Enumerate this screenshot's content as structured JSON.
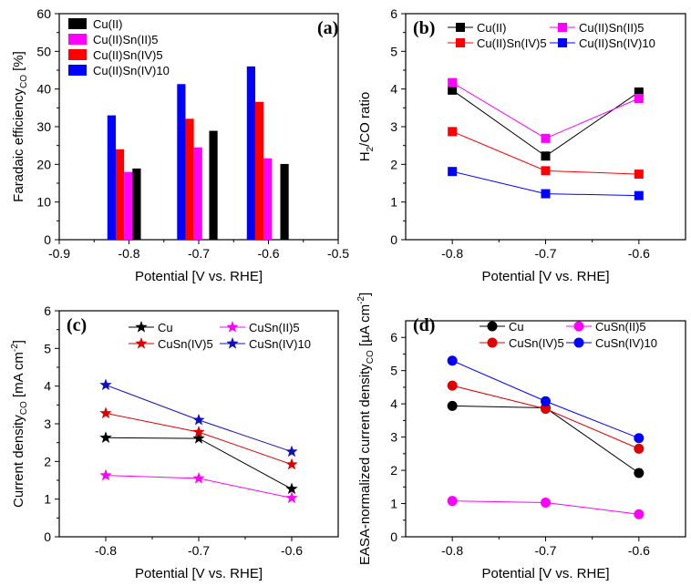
{
  "chart_data": [
    {
      "id": "a",
      "type": "bar",
      "panel_label": "(a)",
      "title": "",
      "xlabel": "Potential [V vs. RHE]",
      "ylabel": "Faradaic efficiency",
      "ylabel_sub": "CO",
      "ylabel_unit": " [%]",
      "xlim": [
        -0.9,
        -0.5
      ],
      "ylim": [
        0,
        60
      ],
      "xticks": [
        -0.9,
        -0.8,
        -0.7,
        -0.6,
        -0.5
      ],
      "xtick_labels": [
        "-0.9",
        "-0.8",
        "-0.7",
        "-0.6",
        "-0.5"
      ],
      "yticks": [
        0,
        10,
        20,
        30,
        40,
        50,
        60
      ],
      "ytick_labels": [
        "0",
        "10",
        "20",
        "30",
        "40",
        "50",
        "60"
      ],
      "bar_width": 0.012,
      "series": [
        {
          "name": "Cu(II)Sn(IV)10",
          "color": "#0000ff",
          "x": [
            -0.825,
            -0.725,
            -0.625
          ],
          "values": [
            33,
            41.3,
            46
          ]
        },
        {
          "name": "Cu(II)Sn(IV)5",
          "color": "#ff0000",
          "x": [
            -0.813,
            -0.713,
            -0.613
          ],
          "values": [
            24,
            32.1,
            36.6
          ]
        },
        {
          "name": "Cu(II)Sn(II)5",
          "color": "#ff00ff",
          "x": [
            -0.801,
            -0.701,
            -0.601
          ],
          "values": [
            18,
            24.5,
            21.6
          ]
        },
        {
          "name": "Cu(II)",
          "color": "#000000",
          "x": [
            -0.789,
            -0.679,
            -0.577
          ],
          "values": [
            18.9,
            28.9,
            20.1
          ]
        }
      ],
      "legend": [
        "Cu(II)",
        "Cu(II)Sn(II)5",
        "Cu(II)Sn(IV)5",
        "Cu(II)Sn(IV)10"
      ]
    },
    {
      "id": "b",
      "type": "line",
      "panel_label": "(b)",
      "xlabel": "Potential [V vs. RHE]",
      "ylabel": "H",
      "ylabel_sub": "2",
      "ylabel_unit": "/CO ratio",
      "xlim": [
        -0.85,
        -0.55
      ],
      "ylim": [
        0,
        6
      ],
      "xticks": [
        -0.8,
        -0.7,
        -0.6
      ],
      "xtick_labels": [
        "-0.8",
        "-0.7",
        "-0.6"
      ],
      "yticks": [
        0,
        1,
        2,
        3,
        4,
        5,
        6
      ],
      "ytick_labels": [
        "0",
        "1",
        "2",
        "3",
        "4",
        "5",
        "6"
      ],
      "marker": "square",
      "x": [
        -0.8,
        -0.7,
        -0.6
      ],
      "series": [
        {
          "name": "Cu(II)",
          "color": "#000000",
          "values": [
            3.97,
            2.22,
            3.92
          ]
        },
        {
          "name": "Cu(II)Sn(II)5",
          "color": "#ff00ff",
          "values": [
            4.17,
            2.69,
            3.75
          ]
        },
        {
          "name": "Cu(II)Sn(IV)5",
          "color": "#ff0000",
          "values": [
            2.87,
            1.83,
            1.74
          ]
        },
        {
          "name": "Cu(II)Sn(IV)10",
          "color": "#0000ff",
          "values": [
            1.81,
            1.22,
            1.17
          ]
        }
      ]
    },
    {
      "id": "c",
      "type": "line",
      "panel_label": "(c)",
      "xlabel": "Potential [V vs. RHE]",
      "ylabel": "Current density",
      "ylabel_sub": "CO",
      "ylabel_unit": " [mA cm",
      "ylabel_sup": "-2",
      "ylabel_end": "]",
      "xlim": [
        -0.85,
        -0.55
      ],
      "ylim": [
        0,
        6
      ],
      "xticks": [
        -0.8,
        -0.7,
        -0.6
      ],
      "xtick_labels": [
        "-0.8",
        "-0.7",
        "-0.6"
      ],
      "yticks": [
        0,
        1,
        2,
        3,
        4,
        5,
        6
      ],
      "ytick_labels": [
        "0",
        "1",
        "2",
        "3",
        "4",
        "5",
        "6"
      ],
      "marker": "star",
      "x": [
        -0.8,
        -0.7,
        -0.6
      ],
      "series": [
        {
          "name": "Cu",
          "color": "#000000",
          "values": [
            2.63,
            2.61,
            1.27
          ]
        },
        {
          "name": "CuSn(II)5",
          "color": "#ff00ff",
          "values": [
            1.63,
            1.55,
            1.03
          ]
        },
        {
          "name": "CuSn(IV)5",
          "color": "#e00000",
          "values": [
            3.28,
            2.78,
            1.92
          ]
        },
        {
          "name": "CuSn(IV)10",
          "color": "#1010c0",
          "values": [
            4.03,
            3.1,
            2.26
          ]
        }
      ]
    },
    {
      "id": "d",
      "type": "line",
      "panel_label": "(d)",
      "xlabel": "Potential [V vs. RHE]",
      "ylabel": "EASA-normalized current density",
      "ylabel_sub": "CO",
      "ylabel_unit": " [µA cm",
      "ylabel_sup": "-2",
      "ylabel_end": "]",
      "xlim": [
        -0.85,
        -0.55
      ],
      "ylim": [
        0,
        6.5
      ],
      "xticks": [
        -0.8,
        -0.7,
        -0.6
      ],
      "xtick_labels": [
        "-0.8",
        "-0.7",
        "-0.6"
      ],
      "yticks": [
        0,
        1,
        2,
        3,
        4,
        5,
        6
      ],
      "ytick_labels": [
        "0",
        "1",
        "2",
        "3",
        "4",
        "5",
        "6"
      ],
      "marker": "circle",
      "x": [
        -0.8,
        -0.7,
        -0.6
      ],
      "series": [
        {
          "name": "Cu",
          "color": "#000000",
          "values": [
            3.94,
            3.88,
            1.92
          ]
        },
        {
          "name": "CuSn(II)5",
          "color": "#ff00ff",
          "values": [
            1.08,
            1.03,
            0.68
          ]
        },
        {
          "name": "CuSn(IV)5",
          "color": "#e00000",
          "values": [
            4.55,
            3.85,
            2.65
          ]
        },
        {
          "name": "CuSn(IV)10",
          "color": "#0000ff",
          "values": [
            5.3,
            4.08,
            2.97
          ]
        }
      ]
    }
  ]
}
